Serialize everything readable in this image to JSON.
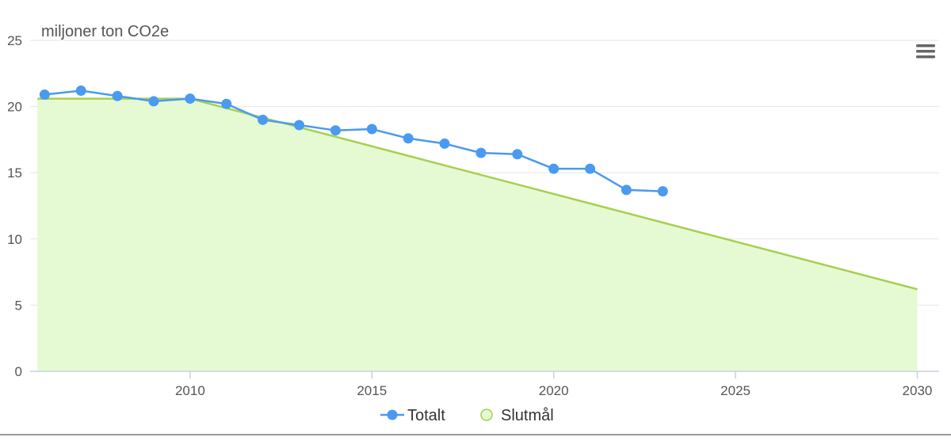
{
  "chart_data": {
    "type": "line",
    "ylabel": "miljoner ton CO2e",
    "xlim": [
      2005.6,
      2030.6
    ],
    "ylim": [
      0,
      25
    ],
    "x_ticks": [
      2010,
      2015,
      2020,
      2025,
      2030
    ],
    "y_ticks": [
      0,
      5,
      10,
      15,
      20,
      25
    ],
    "grid": true,
    "legend": "bottom-center",
    "series": [
      {
        "name": "Totalt",
        "kind": "line",
        "color": "#4a9af0",
        "x": [
          2006,
          2007,
          2008,
          2009,
          2010,
          2011,
          2012,
          2013,
          2014,
          2015,
          2016,
          2017,
          2018,
          2019,
          2020,
          2021,
          2022,
          2023
        ],
        "values": [
          20.9,
          21.2,
          20.8,
          20.4,
          20.6,
          20.2,
          19.0,
          18.6,
          18.2,
          18.3,
          17.6,
          17.2,
          16.5,
          16.4,
          15.3,
          15.3,
          13.7,
          13.6
        ]
      },
      {
        "name": "Slutmål",
        "kind": "area",
        "color": "#a6d04f",
        "fill": "#e5fad3",
        "x": [
          2005.8,
          2010,
          2030
        ],
        "values": [
          20.6,
          20.6,
          6.2
        ]
      }
    ]
  },
  "menu": {
    "icon": "hamburger-menu-icon"
  }
}
